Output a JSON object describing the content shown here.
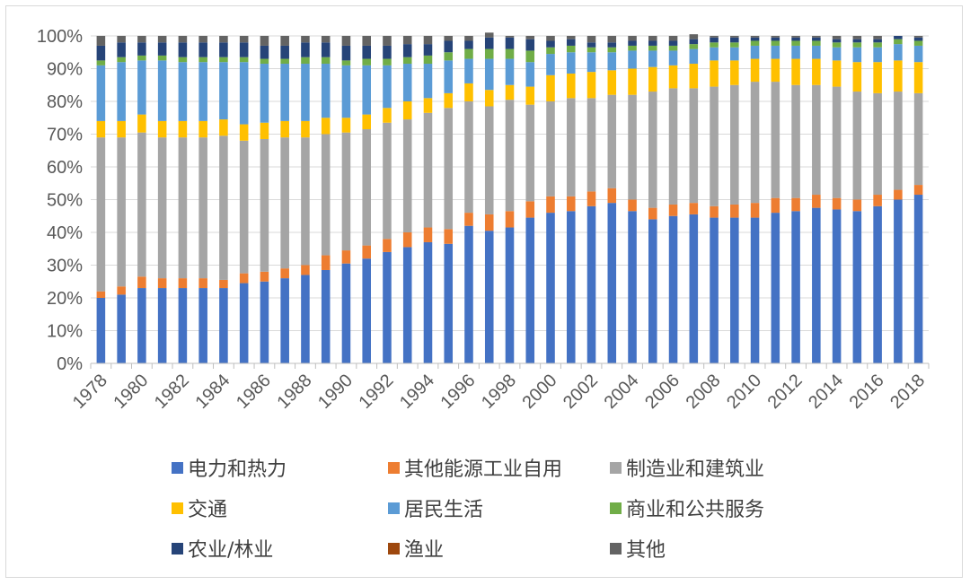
{
  "chart_data": {
    "type": "bar",
    "stacked": true,
    "percent": true,
    "title": "",
    "xlabel": "",
    "ylabel": "",
    "ylim": [
      0,
      100
    ],
    "yticks": [
      "0%",
      "10%",
      "20%",
      "30%",
      "40%",
      "50%",
      "60%",
      "70%",
      "80%",
      "90%",
      "100%"
    ],
    "xtick_labels": [
      "1978",
      "1980",
      "1982",
      "1984",
      "1986",
      "1988",
      "1990",
      "1992",
      "1994",
      "1996",
      "1998",
      "2000",
      "2002",
      "2004",
      "2006",
      "2008",
      "2010",
      "2012",
      "2014",
      "2016",
      "2018"
    ],
    "legend_position": "bottom",
    "categories": [
      "1978",
      "1979",
      "1980",
      "1981",
      "1982",
      "1983",
      "1984",
      "1985",
      "1986",
      "1987",
      "1988",
      "1989",
      "1990",
      "1991",
      "1992",
      "1993",
      "1994",
      "1995",
      "1996",
      "1997",
      "1998",
      "1999",
      "2000",
      "2001",
      "2002",
      "2003",
      "2004",
      "2005",
      "2006",
      "2007",
      "2008",
      "2009",
      "2010",
      "2011",
      "2012",
      "2013",
      "2014",
      "2015",
      "2016",
      "2017",
      "2018"
    ],
    "series": [
      {
        "name": "电力和热力",
        "color": "#4472c4",
        "values": [
          20,
          21,
          23,
          23,
          23,
          23,
          23,
          24.5,
          25,
          26,
          27,
          28.5,
          30.5,
          32,
          34,
          35.5,
          37,
          36.5,
          42,
          40.5,
          41.5,
          44.5,
          46,
          46.5,
          48,
          49,
          46.5,
          44,
          45,
          45.5,
          44.5,
          44.5,
          44.5,
          46,
          46.5,
          47.5,
          47,
          46.5,
          48,
          50,
          51.5
        ]
      },
      {
        "name": "其他能源工业自用",
        "color": "#ed7d31",
        "values": [
          2,
          2.5,
          3.5,
          3,
          3,
          3,
          2.5,
          3,
          3,
          3,
          3,
          4.5,
          4,
          4,
          4,
          4.5,
          4.5,
          4.5,
          4,
          5,
          5,
          5,
          5,
          4.5,
          4.5,
          4.5,
          3.5,
          3.5,
          3.5,
          3.5,
          3.5,
          4,
          4.5,
          4.5,
          4,
          4,
          3.5,
          3.5,
          3.5,
          3,
          3
        ]
      },
      {
        "name": "制造业和建筑业",
        "color": "#a5a5a5",
        "values": [
          47,
          45.5,
          44,
          43,
          43,
          43,
          44,
          40.5,
          40.5,
          40,
          39,
          37,
          36,
          35.5,
          35.5,
          34.5,
          35,
          37,
          34,
          33,
          34,
          29.5,
          29,
          30,
          28.5,
          28.5,
          32,
          35.5,
          35.5,
          35,
          36.5,
          36.5,
          37,
          35.5,
          34.5,
          33.5,
          34,
          33,
          31,
          30,
          28
        ]
      },
      {
        "name": "交通",
        "color": "#ffc000",
        "values": [
          5,
          5,
          5.5,
          5,
          5,
          5,
          5,
          5,
          5,
          5,
          5,
          5,
          4.5,
          4.5,
          4.5,
          5.5,
          4.5,
          4.5,
          5.5,
          5,
          4.5,
          5.5,
          8,
          7.5,
          8,
          7.5,
          8,
          7.5,
          7,
          7.5,
          8,
          7.5,
          7,
          7,
          8,
          8,
          8,
          9,
          9.5,
          9.5,
          9.5
        ]
      },
      {
        "name": "居民生活",
        "color": "#5b9bd5",
        "values": [
          17,
          18,
          16.5,
          18.5,
          18,
          18,
          17.5,
          19,
          18,
          17.5,
          17.5,
          16.5,
          16,
          15,
          13,
          11.5,
          10.5,
          10,
          7.5,
          9.5,
          8,
          7.5,
          6.5,
          6.5,
          6,
          5.5,
          5.5,
          5,
          4.5,
          4.5,
          4,
          4,
          4,
          4,
          4,
          4,
          4,
          4.5,
          4.5,
          5,
          5
        ]
      },
      {
        "name": "商业和公共服务",
        "color": "#70ad47",
        "values": [
          1.5,
          1.5,
          1.5,
          1.5,
          1.5,
          1.5,
          1.5,
          1.5,
          1.5,
          1.5,
          2,
          2,
          1.5,
          2,
          2,
          2,
          2.5,
          2.5,
          3,
          3,
          3,
          3.5,
          2,
          2,
          1.5,
          1.5,
          1.5,
          1.5,
          1.5,
          1.5,
          1.5,
          1.5,
          1.5,
          1.5,
          1.5,
          1.5,
          1.5,
          1.5,
          1.5,
          1.5,
          1.5
        ]
      },
      {
        "name": "农业/林业",
        "color": "#264478",
        "values": [
          4.5,
          4.5,
          4,
          4,
          4.5,
          4.5,
          4.5,
          4.5,
          4,
          4,
          4.5,
          4.5,
          4.5,
          4,
          4,
          4,
          3.5,
          3.5,
          2.5,
          3.5,
          3.5,
          3.5,
          2,
          2,
          1.5,
          1.5,
          1.5,
          1.5,
          1.5,
          1.5,
          1.5,
          1.5,
          1,
          1,
          1,
          1,
          1,
          1,
          1,
          1,
          1
        ]
      },
      {
        "name": "渔业",
        "color": "#9e480e",
        "values": [
          0,
          0,
          0,
          0,
          0,
          0,
          0,
          0,
          0,
          0,
          0,
          0,
          0,
          0,
          0,
          0,
          0,
          0,
          0,
          0,
          0,
          0,
          0,
          0,
          0,
          0,
          0,
          0,
          0,
          0,
          0,
          0,
          0,
          0,
          0,
          0,
          0,
          0,
          0,
          0,
          0
        ]
      },
      {
        "name": "其他",
        "color": "#636363",
        "values": [
          3,
          2,
          2,
          2,
          2,
          2,
          2,
          2,
          3,
          3,
          2,
          2,
          3,
          3,
          3,
          2.5,
          2.5,
          1.5,
          1.5,
          1.5,
          0.5,
          1,
          1.5,
          1,
          2,
          2,
          1.5,
          1.5,
          1.5,
          1.5,
          0.5,
          0.5,
          0.5,
          0.5,
          0.5,
          0.5,
          1,
          1,
          1,
          0,
          0.5
        ]
      }
    ]
  }
}
